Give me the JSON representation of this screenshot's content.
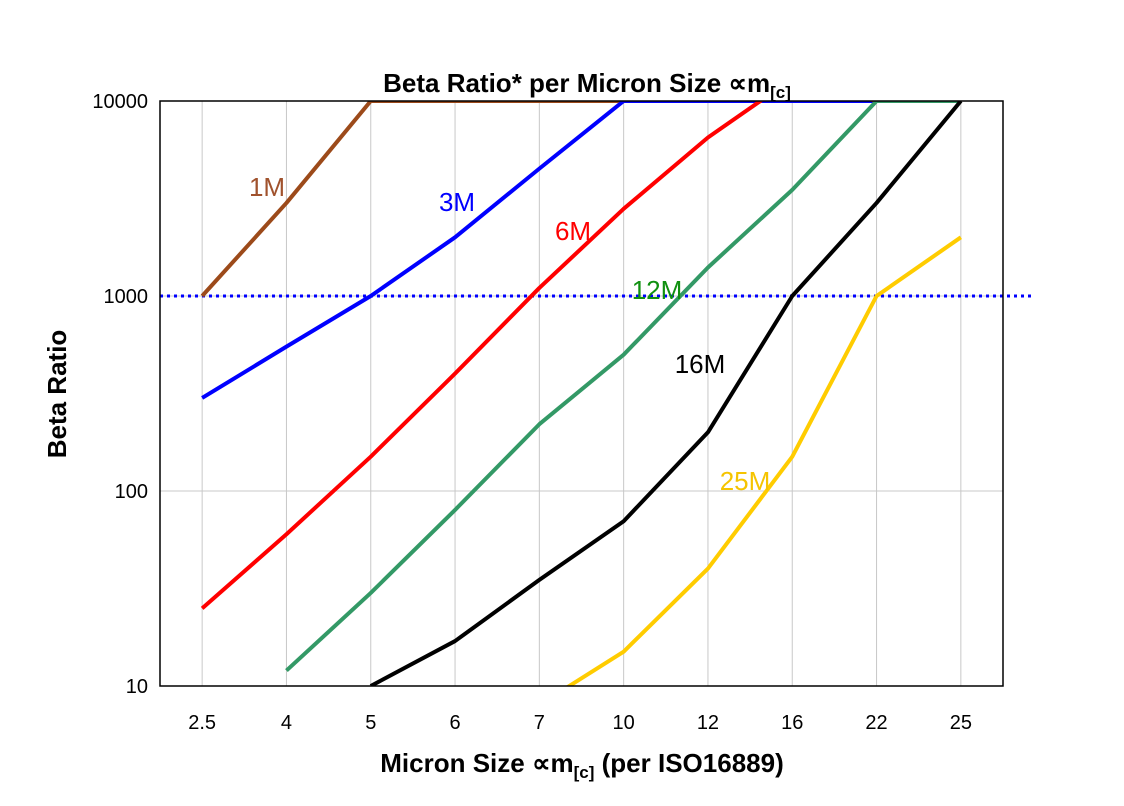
{
  "chart_data": {
    "type": "line",
    "title": "Beta Ratio* per Micron Size ∝m",
    "title_subscript": "[c]",
    "xlabel": "Micron Size ∝m",
    "xlabel_subscript": "[c]",
    "xlabel_suffix": " (per ISO16889)",
    "ylabel": "Beta Ratio",
    "yscale": "log",
    "ylim": [
      10,
      10000
    ],
    "yticks": [
      "10",
      "100",
      "1000",
      "10000"
    ],
    "categories": [
      "2.5",
      "4",
      "5",
      "6",
      "7",
      "10",
      "12",
      "16",
      "22",
      "25"
    ],
    "grid": true,
    "reference_line": {
      "value": 1000,
      "style": "dotted",
      "color": "#0000FF"
    },
    "series": [
      {
        "name": "1M",
        "color": "#9C4A1A",
        "label_color": "#A0522D",
        "values": [
          1000,
          3000,
          10000,
          10000,
          10000,
          10000,
          10000,
          10000,
          10000,
          10000
        ]
      },
      {
        "name": "3M",
        "color": "#0000FF",
        "label_color": "#0000FF",
        "values": [
          300,
          550,
          1000,
          2000,
          4500,
          10000,
          10000,
          10000,
          10000,
          10000
        ]
      },
      {
        "name": "6M",
        "color": "#FF0000",
        "label_color": "#FF0000",
        "values": [
          25,
          60,
          150,
          400,
          1100,
          2800,
          6500,
          13000,
          10000,
          10000
        ]
      },
      {
        "name": "12M",
        "color": "#339966",
        "label_color": "#109010",
        "values": [
          null,
          12,
          30,
          80,
          220,
          500,
          1400,
          3500,
          10000,
          10000
        ]
      },
      {
        "name": "16M",
        "color": "#000000",
        "label_color": "#000000",
        "values": [
          null,
          null,
          10,
          17,
          35,
          70,
          200,
          1000,
          3000,
          10000
        ]
      },
      {
        "name": "25M",
        "color": "#FFCC00",
        "label_color": "#F5C400",
        "values": [
          null,
          null,
          null,
          null,
          8,
          15,
          40,
          150,
          1000,
          2000
        ]
      }
    ]
  }
}
